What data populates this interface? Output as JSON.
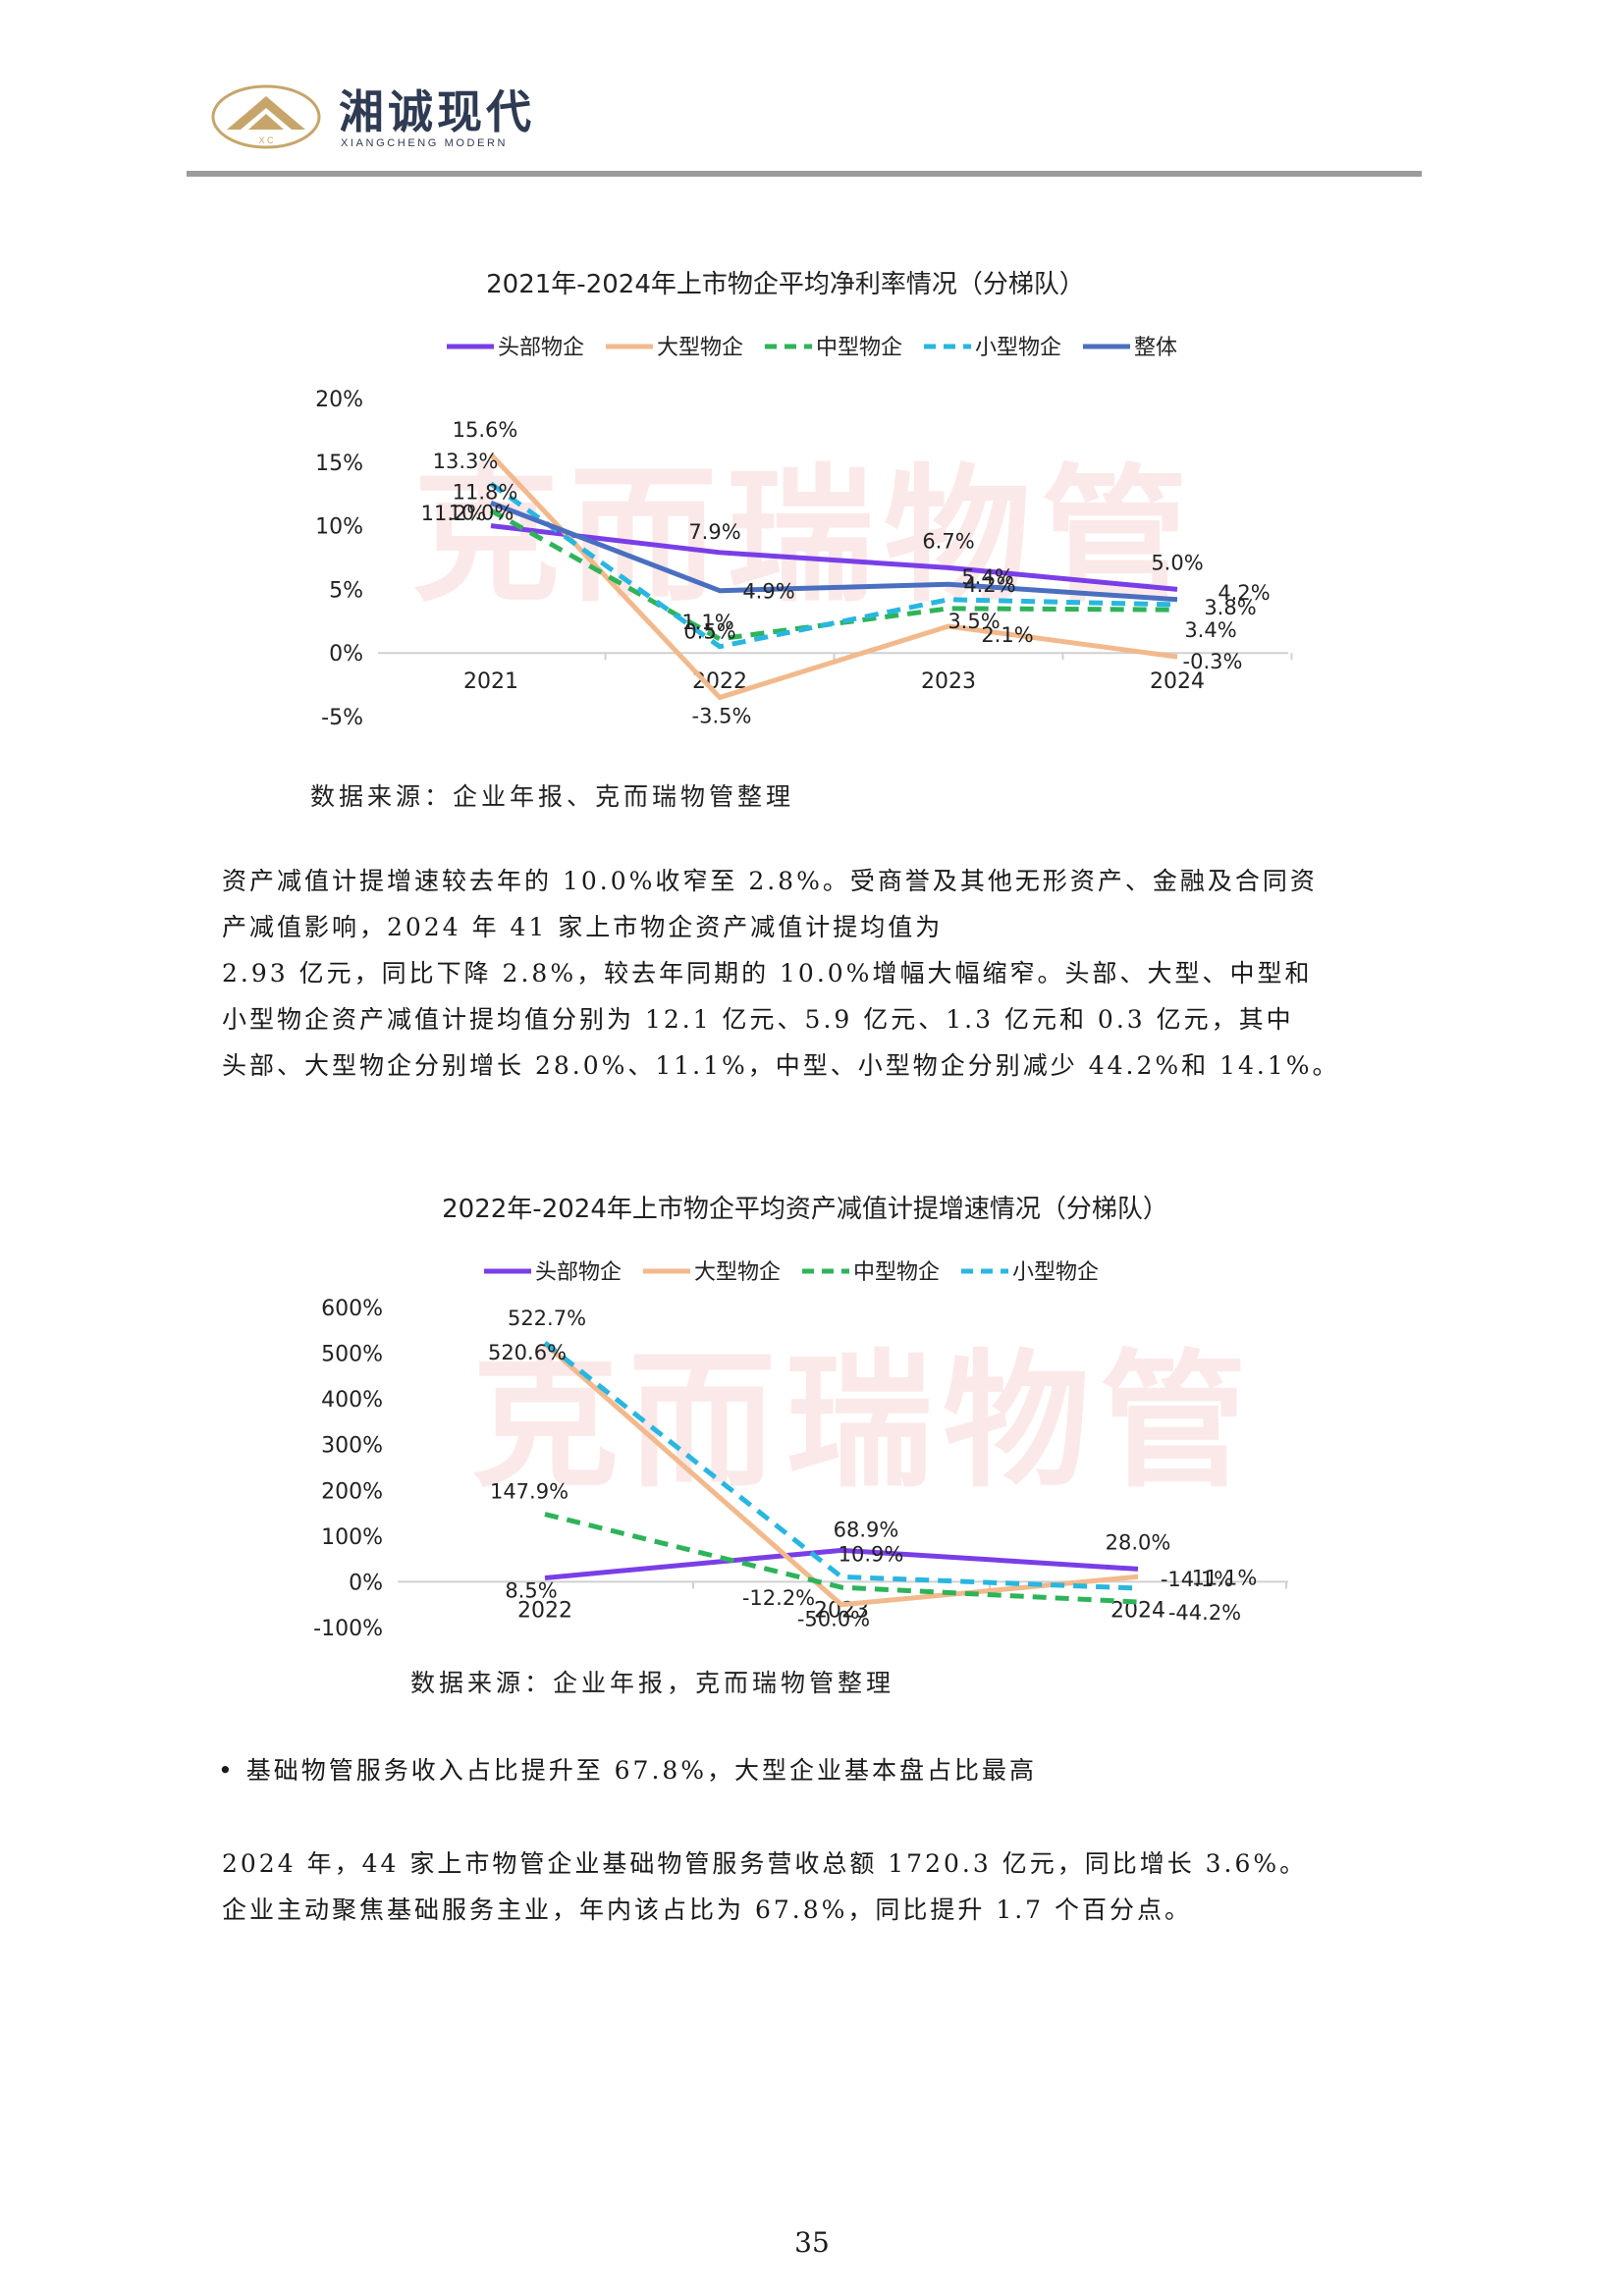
{
  "header": {
    "logo_initials": "X C",
    "company_name": "湘诚现代",
    "company_name_en": "XIANGCHENG MODERN"
  },
  "watermark": "克而瑞物管",
  "charts": [
    {
      "source": "数据来源：企业年报、克而瑞物管整理",
      "chart_data": {
        "type": "line",
        "title": "2021年-2024年上市物企平均净利率情况（分梯队）",
        "categories": [
          "2021",
          "2022",
          "2023",
          "2024"
        ],
        "y_ticks": [
          "20%",
          "15%",
          "10%",
          "5%",
          "0%",
          "-5%"
        ],
        "ylim": [
          -5,
          20
        ],
        "legend_position": "top",
        "series": [
          {
            "name": "头部物企",
            "values": [
              10.0,
              7.9,
              6.7,
              5.0
            ],
            "labels": [
              "10.0%",
              "7.9%",
              "6.7%",
              "5.0%"
            ],
            "color": "#7a3ee8",
            "dash": "solid"
          },
          {
            "name": "大型物企",
            "values": [
              15.6,
              -3.5,
              2.1,
              -0.3
            ],
            "labels": [
              "15.6%",
              "-3.5%",
              "2.1%",
              "-0.3%"
            ],
            "color": "#f2b98c",
            "dash": "solid"
          },
          {
            "name": "中型物企",
            "values": [
              11.2,
              1.1,
              3.5,
              3.4
            ],
            "labels": [
              "11.2%",
              "1.1%",
              "3.5%",
              "3.4%"
            ],
            "color": "#2fb35a",
            "dash": "dash"
          },
          {
            "name": "小型物企",
            "values": [
              13.3,
              0.5,
              4.2,
              3.8
            ],
            "labels": [
              "13.3%",
              "0.5%",
              "4.2%",
              "3.8%"
            ],
            "color": "#29b6e0",
            "dash": "dash"
          },
          {
            "name": "整体",
            "values": [
              11.8,
              4.9,
              5.4,
              4.2
            ],
            "labels": [
              "11.8%",
              "4.9%",
              "5.4%",
              "4.2%"
            ],
            "color": "#4a6fc0",
            "dash": "solid"
          }
        ]
      }
    },
    {
      "source": "数据来源：企业年报，克而瑞物管整理",
      "chart_data": {
        "type": "line",
        "title": "2022年-2024年上市物企平均资产减值计提增速情况（分梯队）",
        "categories": [
          "2022",
          "2023",
          "2024"
        ],
        "y_ticks": [
          "600%",
          "500%",
          "400%",
          "300%",
          "200%",
          "100%",
          "0%",
          "-100%"
        ],
        "ylim": [
          -100,
          600
        ],
        "legend_position": "top",
        "series": [
          {
            "name": "头部物企",
            "values": [
              8.5,
              68.9,
              28.0
            ],
            "labels": [
              "8.5%",
              "68.9%",
              "28.0%"
            ],
            "color": "#7a3ee8",
            "dash": "solid"
          },
          {
            "name": "大型物企",
            "values": [
              520.6,
              -50.0,
              11.1
            ],
            "labels": [
              "520.6%",
              "-50.0%",
              "11.1%"
            ],
            "color": "#f2b98c",
            "dash": "solid"
          },
          {
            "name": "中型物企",
            "values": [
              147.9,
              -12.2,
              -44.2
            ],
            "labels": [
              "147.9%",
              "-12.2%",
              "-44.2%"
            ],
            "color": "#2fb35a",
            "dash": "dash"
          },
          {
            "name": "小型物企",
            "values": [
              522.7,
              10.9,
              -14.1
            ],
            "labels": [
              "522.7%",
              "10.9%",
              "-14.1%"
            ],
            "color": "#29b6e0",
            "dash": "dash"
          }
        ]
      }
    }
  ],
  "paragraph1": [
    "资产减值计提增速较去年的 10.0%收窄至 2.8%。受商誉及其他无形资产、金融及合同资",
    "产减值影响，2024 年 41 家上市物企资产减值计提均值为",
    "2.93 亿元，同比下降 2.8%，较去年同期的 10.0%增幅大幅缩窄。头部、大型、中型和",
    "小型物企资产减值计提均值分别为 12.1 亿元、5.9 亿元、1.3 亿元和 0.3 亿元，其中",
    "头部、大型物企分别增长 28.0%、11.1%，中型、小型物企分别减少 44.2%和 14.1%。"
  ],
  "bullet": "• 基础物管服务收入占比提升至 67.8%，大型企业基本盘占比最高",
  "paragraph2": [
    "2024 年，44 家上市物管企业基础物管服务营收总额 1720.3 亿元，同比增长 3.6%。",
    "企业主动聚焦基础服务主业，年内该占比为 67.8%，同比提升 1.7 个百分点。"
  ],
  "page_number": "35"
}
